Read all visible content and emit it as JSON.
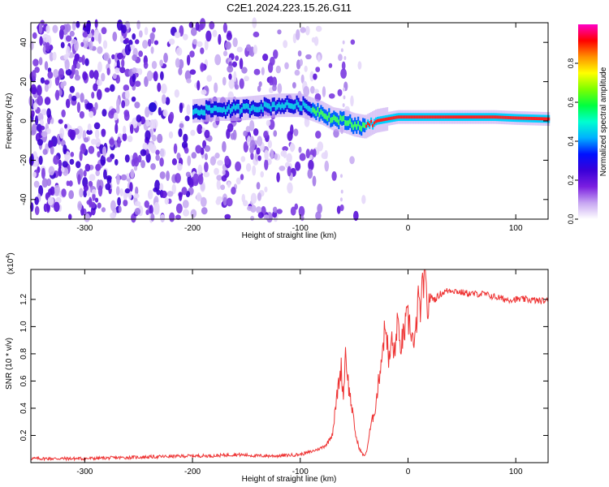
{
  "figure": {
    "title": "C2E1.2024.223.15.26.G11"
  },
  "chart_data": [
    {
      "type": "heatmap",
      "title": "C2E1.2024.223.15.26.G11",
      "xlabel": "Height of straight line (km)",
      "ylabel": "Frequency (Hz)",
      "xlim": [
        -350,
        130
      ],
      "ylim": [
        -50,
        50
      ],
      "xticks": [
        -300,
        -200,
        -100,
        0,
        100
      ],
      "yticks": [
        -40,
        -20,
        0,
        20,
        40
      ],
      "colorbar": {
        "label": "Normalized spectral amplitude",
        "range": [
          0.0,
          1.0
        ],
        "ticks": [
          0.0,
          0.2,
          0.4,
          0.6,
          0.8
        ],
        "tick_labels": [
          "0.0",
          "0.2",
          "0.4",
          "0.6",
          "0.8"
        ],
        "colors": [
          "#ffffff",
          "#c7a6f2",
          "#7b1fe0",
          "#3a00d8",
          "#0010ff",
          "#00b0ff",
          "#00ffd0",
          "#00ff40",
          "#7dff00",
          "#ffff00",
          "#ff9000",
          "#ff0000",
          "#ff00c8"
        ]
      },
      "signal_ridge": {
        "x": [
          -200,
          -180,
          -160,
          -140,
          -120,
          -100,
          -90,
          -80,
          -70,
          -60,
          -50,
          -40,
          -30,
          -20,
          -10,
          0,
          20,
          50,
          80,
          100,
          130
        ],
        "y": [
          5,
          6,
          6,
          7,
          8,
          8,
          6,
          4,
          1,
          0,
          -2,
          -3,
          0,
          1,
          2,
          2,
          2,
          2,
          2,
          1.5,
          1
        ]
      },
      "noise_region": {
        "x_from": -350,
        "x_to": -40
      }
    },
    {
      "type": "line",
      "xlabel": "Height of straight line (km)",
      "ylabel": "SNR (10 * v/v)",
      "y_multiplier": "(x10^4)",
      "y_multiplier_base": "(x10",
      "y_multiplier_exp": "4",
      "y_multiplier_close": ")",
      "xlim": [
        -350,
        130
      ],
      "ylim": [
        0,
        1.42
      ],
      "xticks": [
        -300,
        -200,
        -100,
        0,
        100
      ],
      "yticks": [
        0.2,
        0.4,
        0.6,
        0.8,
        1.0,
        1.2
      ],
      "ytick_labels": [
        "0.2",
        "0.4",
        "0.6",
        "0.8",
        "1.0",
        "1.2"
      ],
      "color": "#ee3333",
      "series": [
        {
          "x": [
            -350,
            -300,
            -250,
            -200,
            -180,
            -160,
            -140,
            -120,
            -100,
            -90,
            -80,
            -75,
            -70,
            -65,
            -62,
            -60,
            -58,
            -55,
            -52,
            -50,
            -48,
            -45,
            -42,
            -40,
            -38,
            -35,
            -32,
            -30,
            -28,
            -25,
            -22,
            -20,
            -18,
            -15,
            -12,
            -10,
            -8,
            -5,
            -2,
            0,
            3,
            6,
            9,
            12,
            15,
            18,
            21,
            25,
            30,
            35,
            40,
            50,
            60,
            70,
            80,
            90,
            100,
            110,
            120,
            130
          ],
          "y": [
            0.03,
            0.03,
            0.04,
            0.05,
            0.05,
            0.06,
            0.05,
            0.05,
            0.06,
            0.08,
            0.11,
            0.14,
            0.22,
            0.55,
            0.7,
            0.48,
            0.82,
            0.55,
            0.4,
            0.28,
            0.18,
            0.1,
            0.06,
            0.05,
            0.1,
            0.25,
            0.35,
            0.42,
            0.55,
            0.75,
            0.95,
            1.0,
            0.72,
            0.9,
            0.78,
            1.08,
            0.85,
            0.9,
            1.02,
            1.05,
            0.98,
            0.82,
            1.18,
            1.12,
            1.42,
            1.12,
            1.22,
            1.2,
            1.24,
            1.26,
            1.27,
            1.25,
            1.24,
            1.24,
            1.22,
            1.2,
            1.2,
            1.2,
            1.19,
            1.19
          ]
        }
      ]
    }
  ]
}
